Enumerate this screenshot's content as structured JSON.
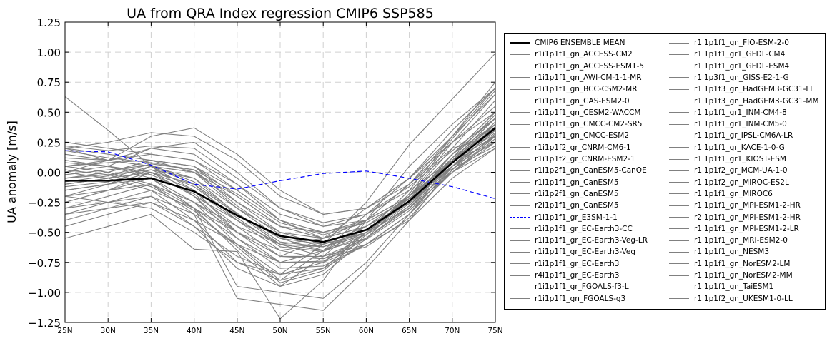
{
  "chart_data": {
    "type": "line",
    "title": "UA from QRA Index regression CMIP6 SSP585",
    "ylabel": "UA anomaly [m/s]",
    "xlabel": "",
    "categories": [
      "25N",
      "30N",
      "35N",
      "40N",
      "45N",
      "50N",
      "55N",
      "60N",
      "65N",
      "70N",
      "75N"
    ],
    "y_ticks": [
      "−1.25",
      "−1.00",
      "−0.75",
      "−0.50",
      "−0.25",
      "0.00",
      "0.25",
      "0.50",
      "0.75",
      "1.00",
      "1.25"
    ],
    "ylim": [
      -1.25,
      1.25
    ],
    "grid": true,
    "legend_placement": "outside-right",
    "colors": {
      "ensemble": "#000000",
      "model": "#808080",
      "highlight": "#0000ff"
    },
    "series": [
      {
        "name": "CMIP6 ENSEMBLE MEAN",
        "style": "ensemble",
        "values": [
          -0.07,
          -0.07,
          -0.05,
          -0.16,
          -0.36,
          -0.53,
          -0.58,
          -0.48,
          -0.24,
          0.08,
          0.37
        ]
      },
      {
        "name": "r1i1p1f1_gn_ACCESS-CM2",
        "style": "model",
        "values": [
          -0.1,
          -0.05,
          0.0,
          -0.2,
          -0.4,
          -0.6,
          -0.62,
          -0.5,
          -0.25,
          0.1,
          0.45
        ]
      },
      {
        "name": "r1i1p1f1_gn_ACCESS-ESM1-5",
        "style": "model",
        "values": [
          0.05,
          0.08,
          0.1,
          0.05,
          -0.2,
          -0.45,
          -0.55,
          -0.45,
          -0.2,
          0.15,
          0.4
        ]
      },
      {
        "name": "r1i1p1f1_gn_AWI-CM-1-1-MR",
        "style": "model",
        "values": [
          -0.2,
          -0.15,
          -0.1,
          -0.25,
          -0.5,
          -0.7,
          -0.7,
          -0.55,
          -0.3,
          0.05,
          0.3
        ]
      },
      {
        "name": "r1i1p1f1_gn_BCC-CSM2-MR",
        "style": "model",
        "values": [
          0.2,
          0.1,
          0.05,
          -0.1,
          -0.35,
          -0.6,
          -0.65,
          -0.5,
          -0.2,
          0.2,
          0.6
        ]
      },
      {
        "name": "r1i1p1f1_gn_CAS-ESM2-0",
        "style": "model",
        "values": [
          -0.3,
          -0.25,
          -0.2,
          -0.35,
          -0.6,
          -0.85,
          -0.8,
          -0.6,
          -0.35,
          0.0,
          0.25
        ]
      },
      {
        "name": "r1i1p1f1_gn_CESM2-WACCM",
        "style": "model",
        "values": [
          0.0,
          0.05,
          0.2,
          0.25,
          0.0,
          -0.3,
          -0.45,
          -0.4,
          -0.1,
          0.25,
          0.5
        ]
      },
      {
        "name": "r1i1p1f1_gn_CMCC-CM2-SR5",
        "style": "model",
        "values": [
          -0.15,
          -0.1,
          -0.05,
          -0.3,
          -0.55,
          -0.75,
          -0.75,
          -0.6,
          -0.4,
          -0.05,
          0.2
        ]
      },
      {
        "name": "r1i1p1f1_gn_CMCC-ESM2",
        "style": "model",
        "values": [
          0.1,
          0.05,
          0.0,
          -0.15,
          -0.4,
          -0.6,
          -0.65,
          -0.55,
          -0.3,
          0.05,
          0.35
        ]
      },
      {
        "name": "r1i1p1f2_gr_CNRM-CM6-1",
        "style": "model",
        "values": [
          -0.4,
          -0.3,
          -0.2,
          -0.45,
          -0.8,
          -0.95,
          -0.7,
          -0.4,
          -0.1,
          0.3,
          0.75
        ]
      },
      {
        "name": "r1i1p1f2_gr_CNRM-ESM2-1",
        "style": "model",
        "values": [
          -0.35,
          -0.25,
          -0.15,
          -0.4,
          -0.75,
          -0.9,
          -0.65,
          -0.35,
          -0.05,
          0.35,
          0.7
        ]
      },
      {
        "name": "r1i1p2f1_gn_CanESM5-CanOE",
        "style": "model",
        "values": [
          0.25,
          0.2,
          0.15,
          0.1,
          -0.1,
          -0.35,
          -0.45,
          -0.35,
          -0.15,
          0.1,
          0.3
        ]
      },
      {
        "name": "r1i1p1f1_gn_CanESM5",
        "style": "model",
        "values": [
          0.2,
          0.15,
          0.1,
          0.05,
          -0.15,
          -0.4,
          -0.5,
          -0.4,
          -0.2,
          0.05,
          0.25
        ]
      },
      {
        "name": "r1i1p2f1_gn_CanESM5",
        "style": "model",
        "values": [
          0.15,
          0.1,
          0.05,
          0.0,
          -0.2,
          -0.45,
          -0.55,
          -0.45,
          -0.25,
          0.0,
          0.2
        ]
      },
      {
        "name": "r2i1p1f1_gn_CanESM5",
        "style": "model",
        "values": [
          0.18,
          0.12,
          0.08,
          0.02,
          -0.18,
          -0.42,
          -0.52,
          -0.42,
          -0.22,
          0.03,
          0.22
        ]
      },
      {
        "name": "r1i1p1f1_gr_E3SM-1-1",
        "style": "highlight",
        "values": [
          0.18,
          0.17,
          0.06,
          -0.1,
          -0.14,
          -0.07,
          -0.01,
          0.01,
          -0.05,
          -0.12,
          -0.22
        ]
      },
      {
        "name": "r1i1p1f1_gr_EC-Earth3-CC",
        "style": "model",
        "values": [
          -0.1,
          -0.05,
          0.05,
          0.0,
          -0.3,
          -0.55,
          -0.65,
          -0.55,
          -0.3,
          0.1,
          0.45
        ]
      },
      {
        "name": "r1i1p1f1_gr_EC-Earth3-Veg-LR",
        "style": "model",
        "values": [
          -0.05,
          0.0,
          0.1,
          0.05,
          -0.25,
          -0.5,
          -0.6,
          -0.5,
          -0.25,
          0.15,
          0.5
        ]
      },
      {
        "name": "r1i1p1f1_gr_EC-Earth3-Veg",
        "style": "model",
        "values": [
          -0.12,
          -0.08,
          0.02,
          -0.05,
          -0.35,
          -0.6,
          -0.7,
          -0.6,
          -0.35,
          0.05,
          0.4
        ]
      },
      {
        "name": "r1i1p1f1_gr_EC-Earth3",
        "style": "model",
        "values": [
          -0.08,
          -0.03,
          0.07,
          0.02,
          -0.28,
          -0.52,
          -0.62,
          -0.52,
          -0.28,
          0.12,
          0.48
        ]
      },
      {
        "name": "r4i1p1f1_gr_EC-Earth3",
        "style": "model",
        "values": [
          -0.15,
          -0.1,
          0.0,
          -0.1,
          -0.4,
          -0.65,
          -0.72,
          -0.62,
          -0.38,
          0.02,
          0.38
        ]
      },
      {
        "name": "r1i1p1f1_gr_FGOALS-f3-L",
        "style": "model",
        "values": [
          0.63,
          0.35,
          0.05,
          -0.2,
          -0.5,
          -0.7,
          -0.55,
          -0.3,
          -0.05,
          0.3,
          0.65
        ]
      },
      {
        "name": "r1i1p1f1_gn_FGOALS-g3",
        "style": "model",
        "values": [
          -0.55,
          -0.45,
          -0.35,
          -0.64,
          -0.66,
          -1.22,
          -0.9,
          -0.4,
          0.05,
          0.4,
          0.7
        ]
      },
      {
        "name": "r1i1p1f1_gn_FIO-ESM-2-0",
        "style": "model",
        "values": [
          0.0,
          0.1,
          0.3,
          0.37,
          0.15,
          -0.15,
          -0.35,
          -0.3,
          -0.1,
          0.2,
          0.3
        ]
      },
      {
        "name": "r1i1p1f1_gr1_GFDL-CM4",
        "style": "model",
        "values": [
          -0.25,
          -0.15,
          0.0,
          -0.2,
          -0.55,
          -0.8,
          -0.78,
          -0.6,
          -0.35,
          0.0,
          0.3
        ]
      },
      {
        "name": "r1i1p1f1_gr1_GFDL-ESM4",
        "style": "model",
        "values": [
          -0.2,
          -0.1,
          0.05,
          -0.15,
          -0.5,
          -0.75,
          -0.74,
          -0.56,
          -0.32,
          0.02,
          0.32
        ]
      },
      {
        "name": "r1i1p3f1_gn_GISS-E2-1-G",
        "style": "model",
        "values": [
          -0.45,
          -0.35,
          -0.25,
          -0.4,
          -0.6,
          -0.75,
          -0.65,
          -0.45,
          -0.2,
          0.15,
          0.45
        ]
      },
      {
        "name": "r1i1p1f3_gn_HadGEM3-GC31-LL",
        "style": "model",
        "values": [
          0.05,
          0.0,
          -0.1,
          -0.3,
          -0.65,
          -0.95,
          -0.85,
          -0.55,
          -0.2,
          0.25,
          0.65
        ]
      },
      {
        "name": "r1i1p1f3_gn_HadGEM3-GC31-MM",
        "style": "model",
        "values": [
          0.1,
          0.05,
          -0.05,
          -0.25,
          -0.6,
          -0.9,
          -0.8,
          -0.5,
          -0.15,
          0.3,
          0.7
        ]
      },
      {
        "name": "r1i1p1f1_gr1_INM-CM4-8",
        "style": "model",
        "values": [
          -0.3,
          -0.2,
          -0.1,
          -0.35,
          -1.05,
          -1.1,
          -1.15,
          -0.8,
          -0.4,
          0.05,
          0.35
        ]
      },
      {
        "name": "r1i1p1f1_gr1_INM-CM5-0",
        "style": "model",
        "values": [
          -0.25,
          -0.15,
          -0.05,
          -0.3,
          -0.95,
          -1.0,
          -1.05,
          -0.75,
          -0.35,
          0.1,
          0.4
        ]
      },
      {
        "name": "r1i1p1f1_gr_IPSL-CM6A-LR",
        "style": "model",
        "values": [
          0.2,
          0.25,
          0.33,
          0.3,
          0.1,
          -0.2,
          -0.35,
          -0.3,
          -0.05,
          0.25,
          0.55
        ]
      },
      {
        "name": "r1i1p1f1_gr_KACE-1-0-G",
        "style": "model",
        "values": [
          0.05,
          0.1,
          0.2,
          0.15,
          -0.1,
          -0.4,
          -0.55,
          -0.45,
          -0.2,
          0.15,
          0.5
        ]
      },
      {
        "name": "r1i1p1f1_gr1_KIOST-ESM",
        "style": "model",
        "values": [
          -0.35,
          -0.3,
          -0.25,
          -0.45,
          -0.7,
          -0.85,
          -0.75,
          -0.5,
          -0.2,
          0.1,
          0.25
        ]
      },
      {
        "name": "r1i1p1f2_gr_MCM-UA-1-0",
        "style": "model",
        "values": [
          -0.2,
          -0.25,
          -0.3,
          -0.5,
          -0.75,
          -0.85,
          -0.6,
          -0.25,
          0.23,
          0.61,
          0.99
        ]
      },
      {
        "name": "r1i1p1f2_gn_MIROC-ES2L",
        "style": "model",
        "values": [
          0.0,
          -0.05,
          -0.15,
          -0.3,
          -0.5,
          -0.65,
          -0.6,
          -0.45,
          -0.25,
          0.05,
          0.3
        ]
      },
      {
        "name": "r1i1p1f1_gn_MIROC6",
        "style": "model",
        "values": [
          0.05,
          0.0,
          -0.1,
          -0.25,
          -0.45,
          -0.6,
          -0.55,
          -0.4,
          -0.2,
          0.1,
          0.35
        ]
      },
      {
        "name": "r1i1p1f1_gn_MPI-ESM1-2-HR",
        "style": "model",
        "values": [
          -0.1,
          -0.05,
          0.05,
          -0.05,
          -0.3,
          -0.5,
          -0.55,
          -0.45,
          -0.25,
          0.05,
          0.3
        ]
      },
      {
        "name": "r2i1p1f1_gn_MPI-ESM1-2-HR",
        "style": "model",
        "values": [
          -0.05,
          0.0,
          0.1,
          0.0,
          -0.25,
          -0.45,
          -0.5,
          -0.4,
          -0.2,
          0.08,
          0.33
        ]
      },
      {
        "name": "r1i1p1f1_gn_MPI-ESM1-2-LR",
        "style": "model",
        "values": [
          -0.15,
          -0.1,
          0.0,
          -0.1,
          -0.35,
          -0.55,
          -0.6,
          -0.5,
          -0.3,
          0.0,
          0.28
        ]
      },
      {
        "name": "r1i1p1f1_gn_MRI-ESM2-0",
        "style": "model",
        "values": [
          0.08,
          0.05,
          -0.02,
          -0.18,
          -0.45,
          -0.7,
          -0.72,
          -0.55,
          -0.28,
          0.08,
          0.42
        ]
      },
      {
        "name": "r1i1p1f1_gn_NESM3",
        "style": "model",
        "values": [
          0.12,
          0.1,
          0.15,
          0.1,
          -0.15,
          -0.4,
          -0.5,
          -0.42,
          -0.22,
          0.1,
          0.38
        ]
      },
      {
        "name": "r1i1p1f1_gn_NorESM2-LM",
        "style": "model",
        "values": [
          -0.05,
          -0.02,
          0.02,
          -0.12,
          -0.38,
          -0.62,
          -0.66,
          -0.52,
          -0.26,
          0.08,
          0.36
        ]
      },
      {
        "name": "r1i1p1f1_gn_NorESM2-MM",
        "style": "model",
        "values": [
          -0.02,
          0.02,
          0.06,
          -0.08,
          -0.34,
          -0.58,
          -0.62,
          -0.48,
          -0.22,
          0.12,
          0.4
        ]
      },
      {
        "name": "r1i1p1f1_gn_TaiESM1",
        "style": "model",
        "values": [
          0.22,
          0.18,
          0.22,
          0.2,
          -0.05,
          -0.3,
          -0.42,
          -0.35,
          -0.12,
          0.18,
          0.45
        ]
      },
      {
        "name": "r1i1p1f2_gn_UKESM1-0-LL",
        "style": "model",
        "values": [
          0.02,
          -0.02,
          -0.12,
          -0.32,
          -0.62,
          -0.92,
          -0.82,
          -0.52,
          -0.18,
          0.28,
          0.68
        ]
      }
    ]
  }
}
